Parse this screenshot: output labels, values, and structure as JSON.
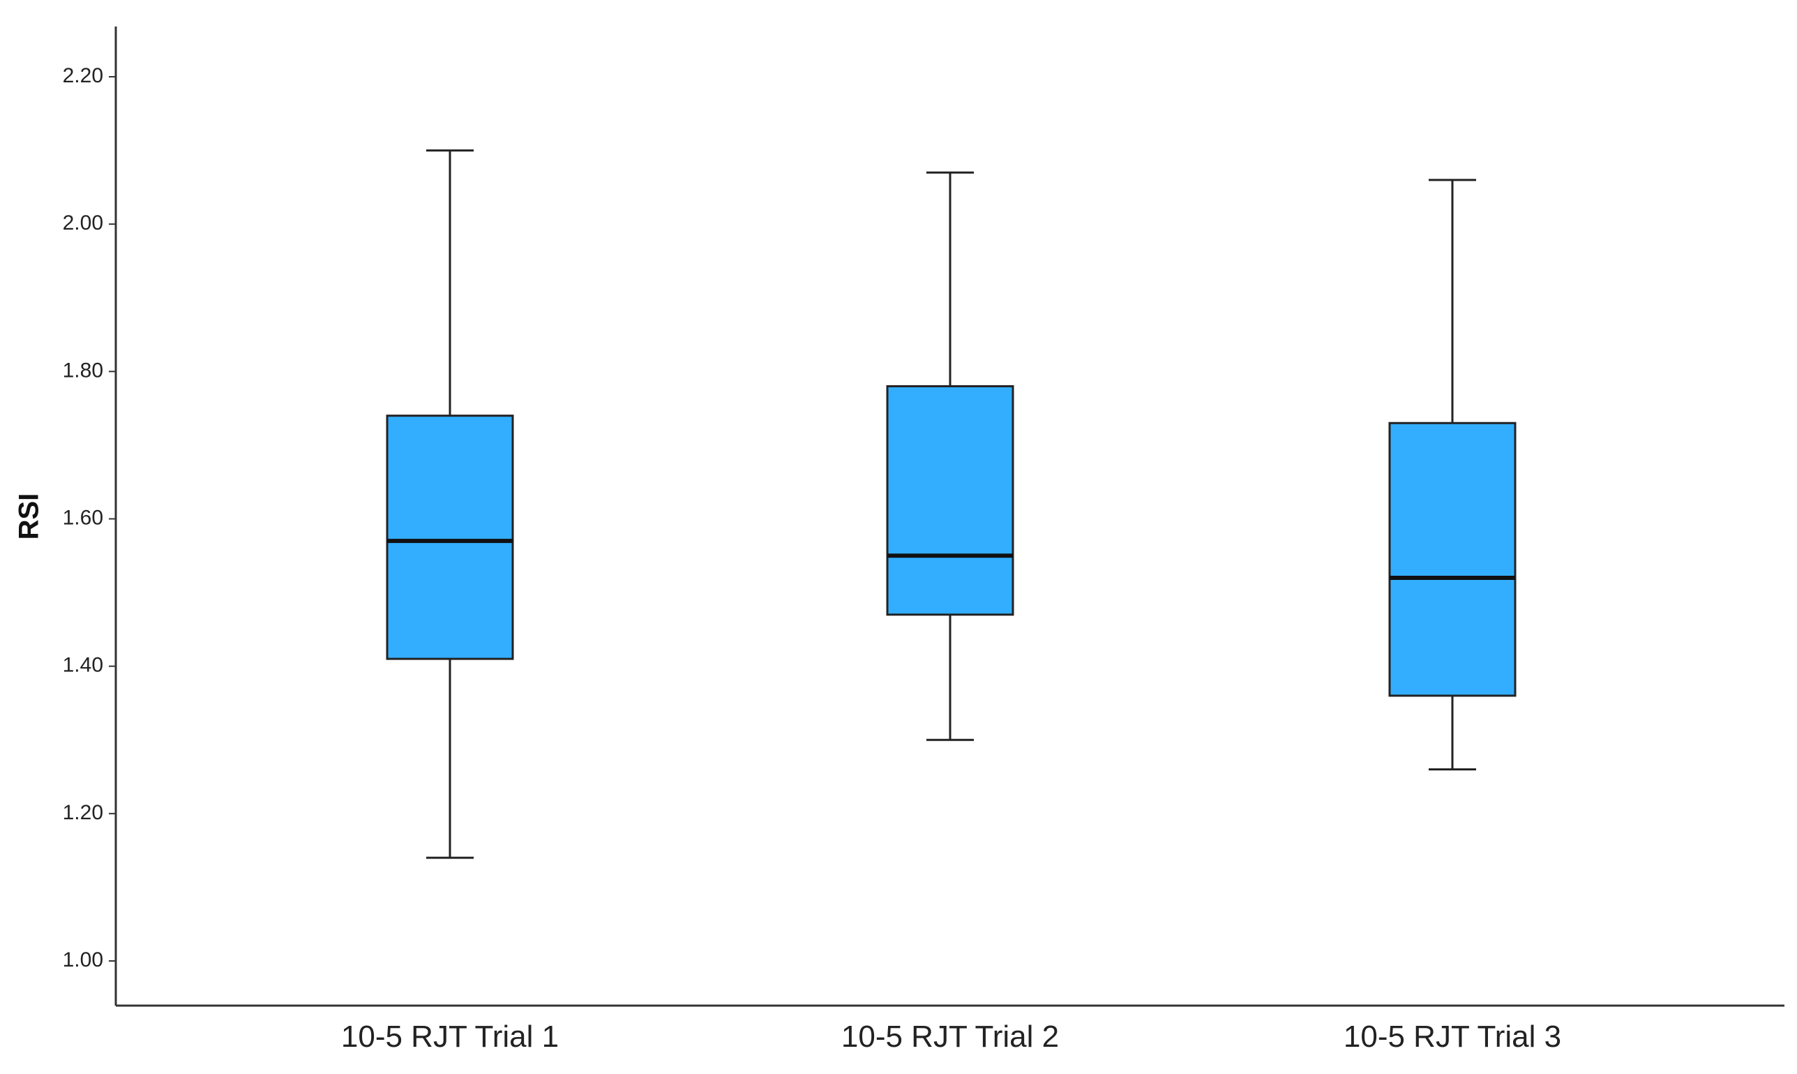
{
  "chart_data": {
    "type": "boxplot",
    "title": "",
    "xlabel": "",
    "ylabel": "RSI",
    "ylim": [
      0.94,
      2.27
    ],
    "yticks": [
      1.0,
      1.2,
      1.4,
      1.6,
      1.8,
      2.0,
      2.2
    ],
    "ytick_labels": [
      "1.00",
      "1.20",
      "1.40",
      "1.60",
      "1.80",
      "2.00",
      "2.20"
    ],
    "grid": false,
    "legend": "none",
    "box_color": "#33AEFF",
    "line_color": "#222222",
    "categories": [
      "10-5 RJT Trial 1",
      "10-5 RJT Trial 2",
      "10-5 RJT Trial 3"
    ],
    "boxes": [
      {
        "category": "10-5 RJT Trial 1",
        "min": 1.14,
        "q1": 1.41,
        "median": 1.57,
        "q3": 1.74,
        "max": 2.1
      },
      {
        "category": "10-5 RJT Trial 2",
        "min": 1.3,
        "q1": 1.47,
        "median": 1.55,
        "q3": 1.78,
        "max": 2.07
      },
      {
        "category": "10-5 RJT Trial 3",
        "min": 1.26,
        "q1": 1.36,
        "median": 1.52,
        "q3": 1.73,
        "max": 2.06
      }
    ]
  }
}
